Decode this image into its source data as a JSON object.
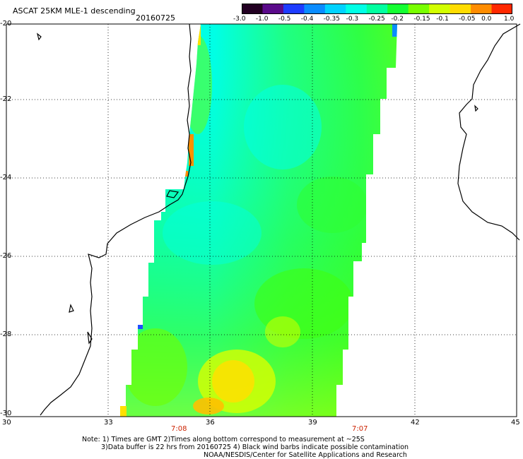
{
  "title": "ASCAT 25KM MLE-1 descending",
  "date": "20160725",
  "colorbar": {
    "ticks": [
      "-3.0",
      "-1.0",
      "-0.5",
      "-0.4",
      "-0.35",
      "-0.3",
      "-0.25",
      "-0.2",
      "-0.15",
      "-0.1",
      "-0.05",
      "0.0",
      "1.0"
    ],
    "colors": [
      "#220022",
      "#5a0a8a",
      "#1e3cff",
      "#0a8cff",
      "#00d2ff",
      "#00ffe6",
      "#00ffa0",
      "#14ff32",
      "#78ff00",
      "#d2ff00",
      "#ffdc00",
      "#ff8c00",
      "#ff2800"
    ]
  },
  "axes": {
    "lat_labels": [
      "-20",
      "-22",
      "-24",
      "-26",
      "-28",
      "-30"
    ],
    "lon_labels": [
      "30",
      "33",
      "36",
      "39",
      "42",
      "45"
    ]
  },
  "time_labels": [
    "7:08",
    "7:07"
  ],
  "note": [
    "Note: 1) Times are GMT 2)Times along bottom correspond to measurement at ~25S",
    "3)Data buffer is 22 hrs from 20160725 4) Black wind barbs indicate possible contamination",
    "NOAA/NESDIS/Center for Satellite Applications and Research"
  ]
}
